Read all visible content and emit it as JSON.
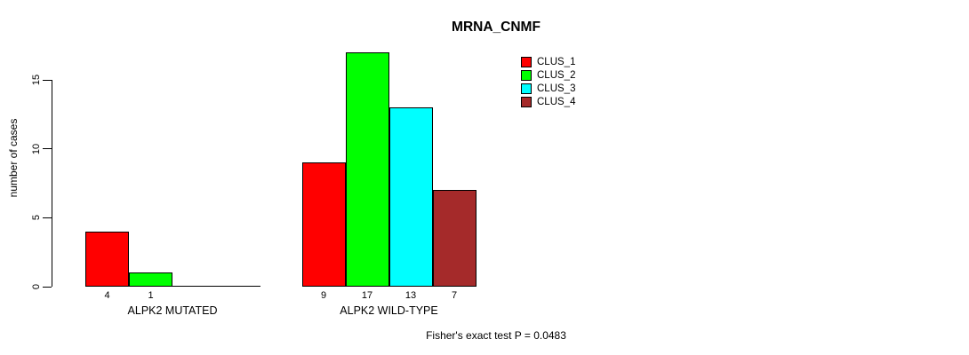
{
  "chart_data": {
    "type": "bar",
    "title": "MRNA_CNMF",
    "ylabel": "number of cases",
    "xlabel": "",
    "ylim": [
      0,
      15
    ],
    "yticks": [
      0,
      5,
      10,
      15
    ],
    "grid": false,
    "legend_position": "top-right",
    "categories": [
      "ALPK2 MUTATED",
      "ALPK2 WILD-TYPE"
    ],
    "series": [
      {
        "name": "CLUS_1",
        "color": "#ff0000",
        "values": [
          4,
          9
        ]
      },
      {
        "name": "CLUS_2",
        "color": "#00ff00",
        "values": [
          1,
          17
        ]
      },
      {
        "name": "CLUS_3",
        "color": "#00ffff",
        "values": [
          0,
          13
        ]
      },
      {
        "name": "CLUS_4",
        "color": "#a52a2a",
        "values": [
          0,
          7
        ]
      }
    ],
    "bar_value_labels": [
      [
        "4",
        "1",
        "",
        ""
      ],
      [
        "9",
        "17",
        "13",
        "7"
      ]
    ],
    "footnote": "Fisher's exact test P = 0.0483"
  }
}
